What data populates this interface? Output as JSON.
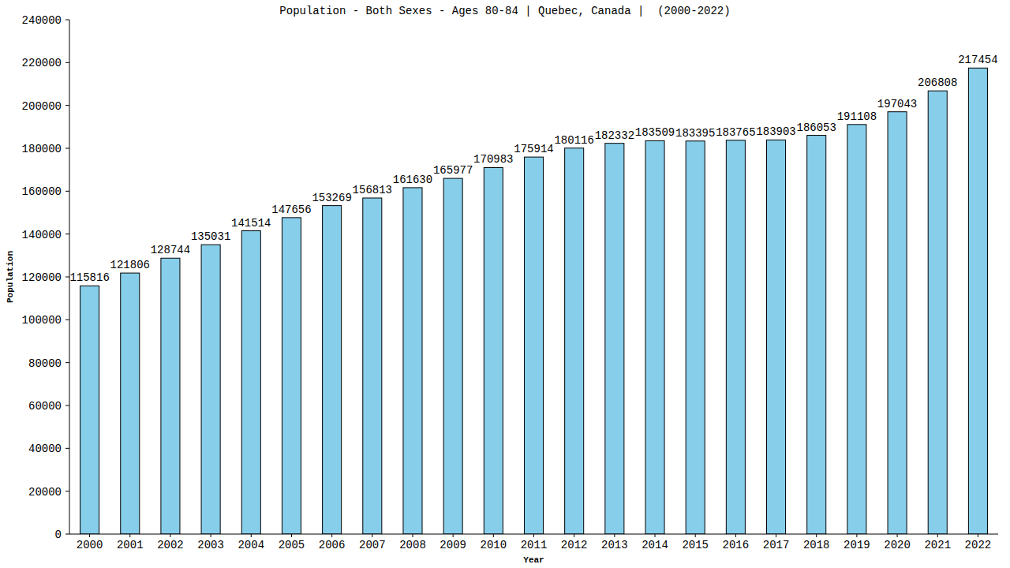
{
  "chart_data": {
    "type": "bar",
    "title": "Population - Both Sexes - Ages 80-84 | Quebec, Canada |  (2000-2022)",
    "x_label": "Year",
    "y_label": "Population",
    "categories": [
      "2000",
      "2001",
      "2002",
      "2003",
      "2004",
      "2005",
      "2006",
      "2007",
      "2008",
      "2009",
      "2010",
      "2011",
      "2012",
      "2013",
      "2014",
      "2015",
      "2016",
      "2017",
      "2018",
      "2019",
      "2020",
      "2021",
      "2022"
    ],
    "values": [
      115816,
      121806,
      128744,
      135031,
      141514,
      147656,
      153269,
      156813,
      161630,
      165977,
      170983,
      175914,
      180116,
      182332,
      183509,
      183395,
      183765,
      183903,
      186053,
      191108,
      197043,
      206808,
      217454
    ],
    "color": "#87ceeb",
    "ylim": [
      0,
      240000
    ],
    "yticks": [
      0,
      20000,
      40000,
      60000,
      80000,
      100000,
      120000,
      140000,
      160000,
      180000,
      200000,
      220000,
      240000
    ],
    "grid": false,
    "data_labels": true
  }
}
